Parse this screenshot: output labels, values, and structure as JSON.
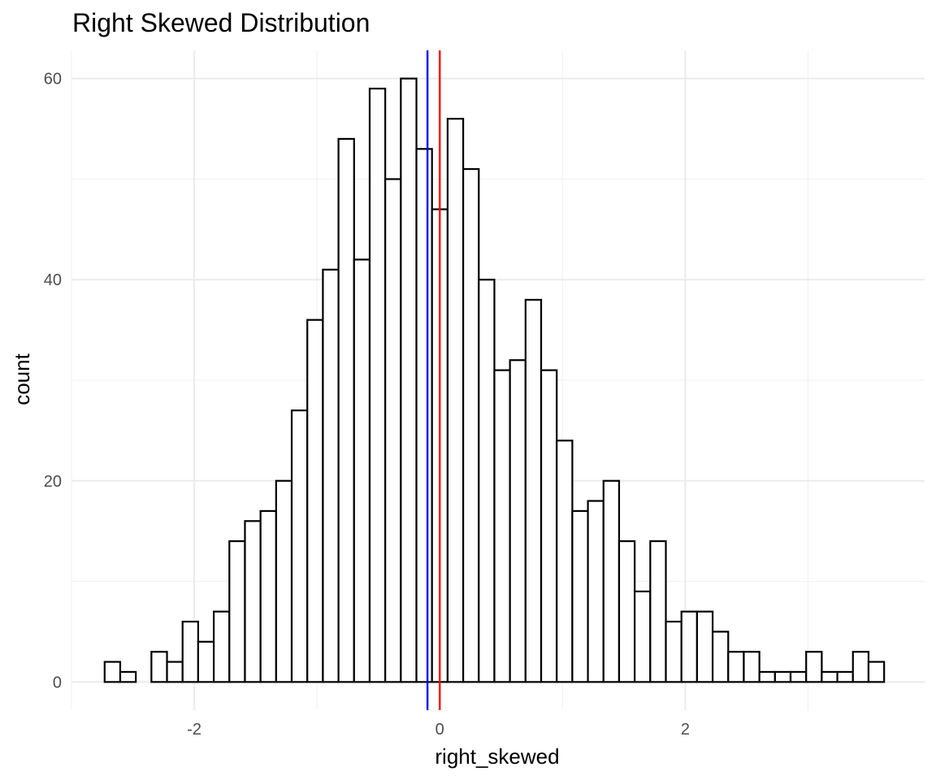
{
  "chart_data": {
    "type": "bar",
    "title": "Right Skewed Distribution",
    "xlabel": "right_skewed",
    "ylabel": "count",
    "xlim": [
      -3.0,
      3.95
    ],
    "ylim": [
      -2.8,
      62.8
    ],
    "x_ticks": [
      -2,
      0,
      2
    ],
    "x_tick_labels": [
      "-2",
      "0",
      "2"
    ],
    "y_ticks": [
      0,
      20,
      40,
      60
    ],
    "y_tick_labels": [
      "0",
      "20",
      "40",
      "60"
    ],
    "grid": true,
    "bin_width": 0.127,
    "bin_start": -2.73,
    "counts": [
      2,
      1,
      0,
      3,
      2,
      6,
      4,
      7,
      14,
      16,
      17,
      20,
      27,
      36,
      41,
      54,
      42,
      59,
      50,
      60,
      53,
      47,
      56,
      51,
      40,
      31,
      32,
      38,
      31,
      24,
      17,
      18,
      20,
      14,
      9,
      14,
      6,
      7,
      7,
      5,
      3,
      3,
      1,
      1,
      1,
      3,
      1,
      1,
      3,
      2
    ],
    "vlines": [
      {
        "x": -0.1,
        "color": "#0000ff"
      },
      {
        "x": 0.0,
        "color": "#ff0000"
      }
    ],
    "bar_fill": "#ffffff",
    "bar_outline": "#000000"
  }
}
